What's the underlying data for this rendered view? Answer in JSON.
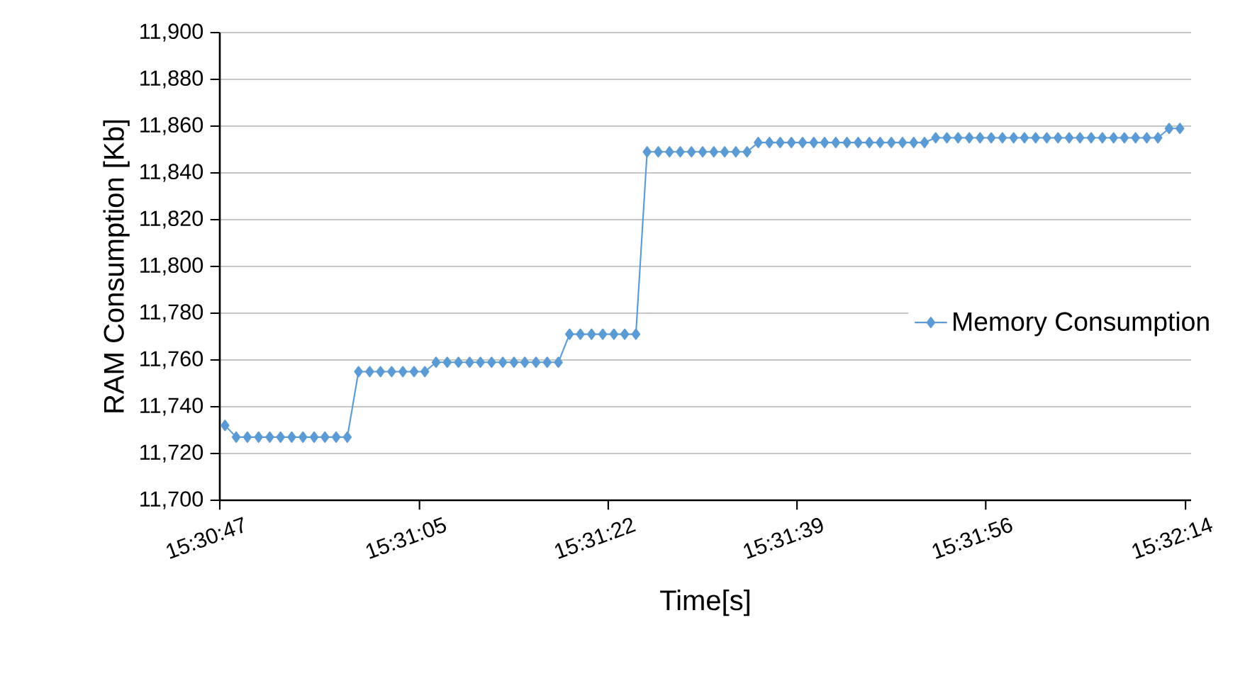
{
  "chart_data": {
    "type": "line",
    "xlabel": "Time[s]",
    "ylabel": "RAM Consumption [Kb]",
    "xlim": [
      15.51306,
      15.53736
    ],
    "ylim": [
      11700,
      11900
    ],
    "xticks": [
      {
        "value": 15.51306,
        "label": "15:30:47"
      },
      {
        "value": 15.518056,
        "label": "15:31:05"
      },
      {
        "value": 15.522778,
        "label": "15:31:22"
      },
      {
        "value": 15.5275,
        "label": "15:31:39"
      },
      {
        "value": 15.532222,
        "label": "15:31:56"
      },
      {
        "value": 15.53722,
        "label": "15:32:14"
      }
    ],
    "yticks": [
      {
        "value": 11700,
        "label": "11,700"
      },
      {
        "value": 11720,
        "label": "11,720"
      },
      {
        "value": 11740,
        "label": "11,740"
      },
      {
        "value": 11760,
        "label": "11,760"
      },
      {
        "value": 11780,
        "label": "11,780"
      },
      {
        "value": 11800,
        "label": "11,800"
      },
      {
        "value": 11820,
        "label": "11,820"
      },
      {
        "value": 11840,
        "label": "11,840"
      },
      {
        "value": 11860,
        "label": "11,860"
      },
      {
        "value": 11880,
        "label": "11,880"
      },
      {
        "value": 11900,
        "label": "11,900"
      }
    ],
    "grid": "y",
    "legend": "right",
    "marker": "diamond",
    "line_style": "solid",
    "x": [
      15.51319,
      15.51347,
      15.51375,
      15.51403,
      15.51431,
      15.51458,
      15.51486,
      15.51514,
      15.51542,
      15.51569,
      15.51597,
      15.51625,
      15.51653,
      15.51681,
      15.51708,
      15.51736,
      15.51764,
      15.51792,
      15.51819,
      15.51847,
      15.51875,
      15.51903,
      15.51931,
      15.51958,
      15.51986,
      15.52014,
      15.52042,
      15.52069,
      15.52097,
      15.52125,
      15.52153,
      15.52181,
      15.52208,
      15.52236,
      15.52264,
      15.52292,
      15.52319,
      15.52347,
      15.52375,
      15.52403,
      15.52431,
      15.52458,
      15.52486,
      15.52514,
      15.52542,
      15.52569,
      15.52597,
      15.52625,
      15.52653,
      15.52681,
      15.52708,
      15.52736,
      15.52764,
      15.52792,
      15.52819,
      15.52847,
      15.52875,
      15.52903,
      15.52931,
      15.52958,
      15.52986,
      15.53014,
      15.53042,
      15.53069,
      15.53097,
      15.53125,
      15.53153,
      15.53181,
      15.53208,
      15.53236,
      15.53264,
      15.53292,
      15.53319,
      15.53347,
      15.53375,
      15.53403,
      15.53431,
      15.53458,
      15.53486,
      15.53514,
      15.53542,
      15.53569,
      15.53597,
      15.53625,
      15.53653,
      15.53681,
      15.53708
    ],
    "series": [
      {
        "name": "Memory Consumption",
        "color": "#5b9bd5",
        "values": [
          11732,
          11727,
          11727,
          11727,
          11727,
          11727,
          11727,
          11727,
          11727,
          11727,
          11727,
          11727,
          11755,
          11755,
          11755,
          11755,
          11755,
          11755,
          11755,
          11759,
          11759,
          11759,
          11759,
          11759,
          11759,
          11759,
          11759,
          11759,
          11759,
          11759,
          11759,
          11771,
          11771,
          11771,
          11771,
          11771,
          11771,
          11771,
          11849,
          11849,
          11849,
          11849,
          11849,
          11849,
          11849,
          11849,
          11849,
          11849,
          11853,
          11853,
          11853,
          11853,
          11853,
          11853,
          11853,
          11853,
          11853,
          11853,
          11853,
          11853,
          11853,
          11853,
          11853,
          11853,
          11855,
          11855,
          11855,
          11855,
          11855,
          11855,
          11855,
          11855,
          11855,
          11855,
          11855,
          11855,
          11855,
          11855,
          11855,
          11855,
          11855,
          11855,
          11855,
          11855,
          11855,
          11859,
          11859
        ]
      }
    ]
  }
}
